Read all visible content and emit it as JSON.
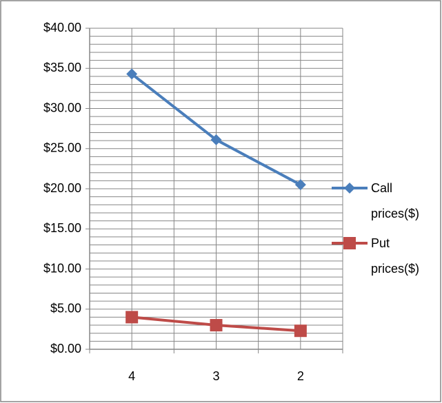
{
  "chart_data": {
    "type": "line",
    "categories": [
      "4",
      "3",
      "2"
    ],
    "series": [
      {
        "name": "Call prices($)",
        "color": "#4a7ebb",
        "marker": "diamond",
        "values": [
          34.3,
          26.1,
          20.5
        ]
      },
      {
        "name": "Put prices($)",
        "color": "#be4b48",
        "marker": "square",
        "values": [
          4.0,
          3.0,
          2.3
        ]
      }
    ],
    "ylim": [
      0,
      40
    ],
    "yticks": [
      {
        "value": 0,
        "label": "$0.00"
      },
      {
        "value": 5,
        "label": "$5.00"
      },
      {
        "value": 10,
        "label": "$10.00"
      },
      {
        "value": 15,
        "label": "$15.00"
      },
      {
        "value": 20,
        "label": "$20.00"
      },
      {
        "value": 25,
        "label": "$25.00"
      },
      {
        "value": 30,
        "label": "$30.00"
      },
      {
        "value": 35,
        "label": "$35.00"
      },
      {
        "value": 40,
        "label": "$40.00"
      }
    ],
    "grid": true,
    "legend": "right"
  }
}
